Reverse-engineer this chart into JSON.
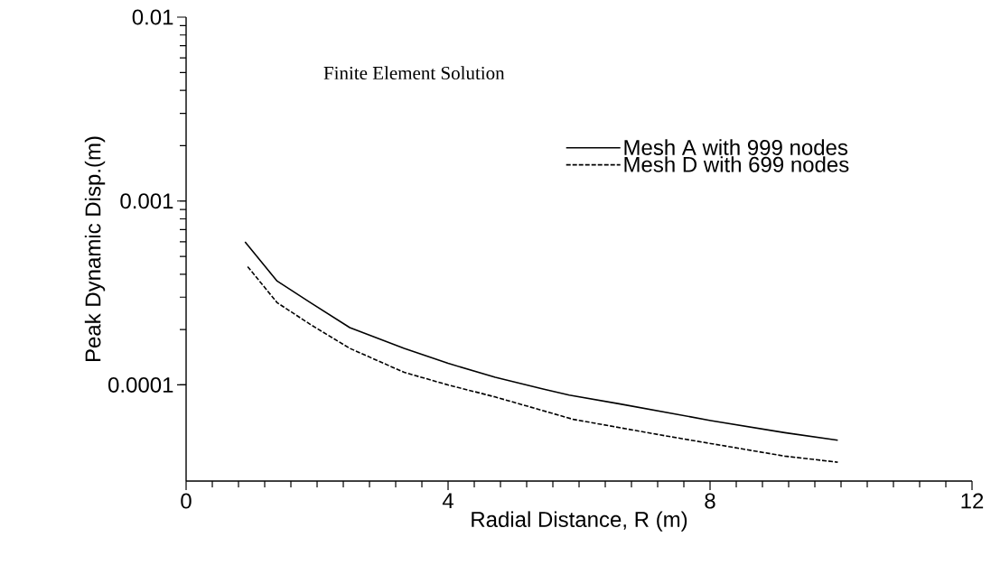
{
  "chart_data": {
    "type": "line",
    "title": "Finite Element Solution",
    "xlabel": "Radial Distance, R (m)",
    "ylabel": "Peak Dynamic Disp.(m)",
    "log": "y",
    "grid": false,
    "legend": "top right",
    "marker": "none",
    "xlim": [
      0,
      12
    ],
    "xticks": [
      0,
      4,
      8,
      12
    ],
    "ylim": [
      3e-05,
      0.01
    ],
    "yticks": [
      0.0001,
      0.001,
      0.01
    ],
    "series": [
      {
        "name": "Mesh A with 999 nodes",
        "color": "#000000",
        "line_style": "solid",
        "x": [
          0.9,
          1.39,
          1.9,
          2.5,
          3.33,
          4.0,
          4.72,
          5.45,
          5.85,
          6.61,
          8.01,
          9.14,
          9.95
        ],
        "values": [
          0.0006,
          0.000367,
          0.00028,
          0.000205,
          0.000158,
          0.000131,
          0.00011,
          9.5e-05,
          8.8e-05,
          7.9e-05,
          6.4e-05,
          5.5e-05,
          5e-05
        ]
      },
      {
        "name": "Mesh D with 699 nodes",
        "color": "#000000",
        "line_style": "dashed",
        "x": [
          0.94,
          1.39,
          1.9,
          2.5,
          3.33,
          4.0,
          4.72,
          5.91,
          7.3,
          8.01,
          9.14,
          9.95
        ],
        "values": [
          0.00044,
          0.00028,
          0.000213,
          0.000158,
          0.000117,
          0.0001,
          8.6e-05,
          6.5e-05,
          5.3e-05,
          4.8e-05,
          4.1e-05,
          3.8e-05
        ]
      }
    ]
  }
}
